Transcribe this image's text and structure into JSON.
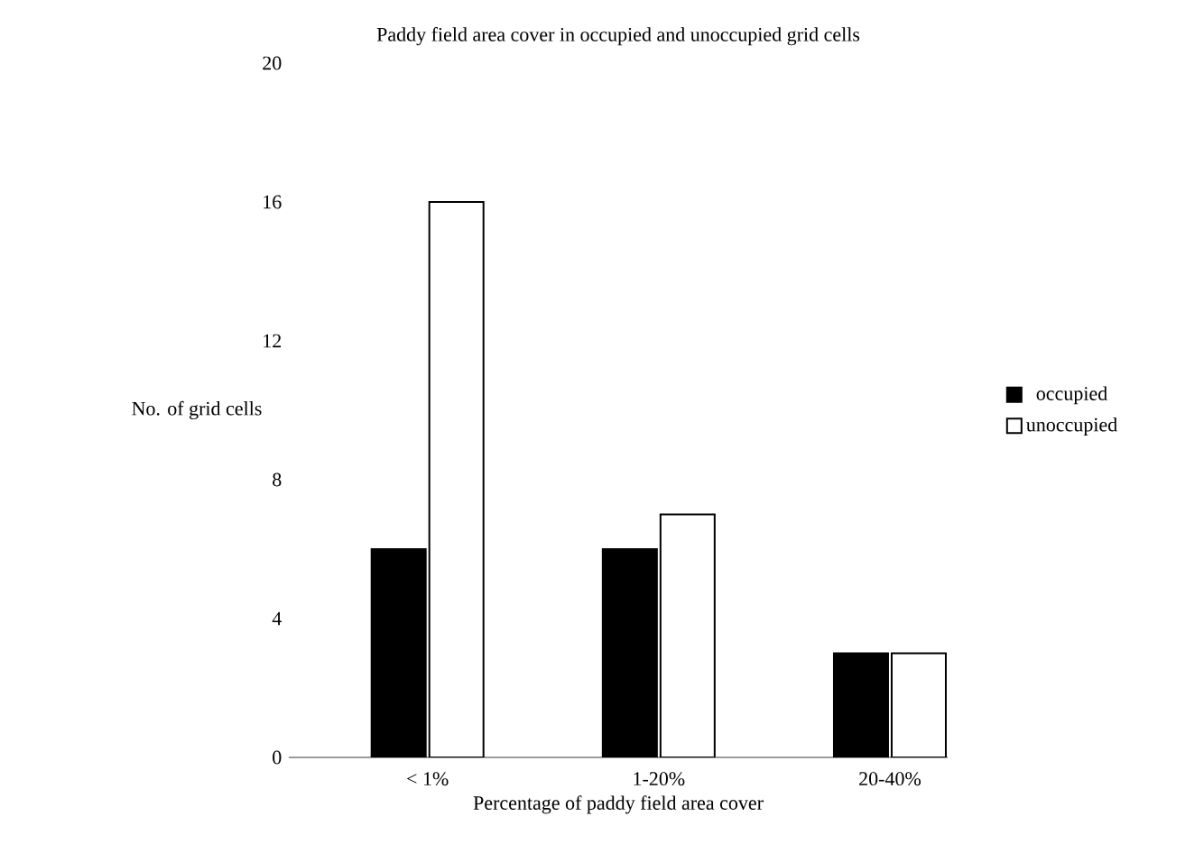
{
  "chart_data": {
    "type": "bar",
    "title": "Paddy field area cover in occupied and unoccupied grid cells",
    "xlabel": "Percentage of paddy field area cover",
    "ylabel": "No. of grid cells",
    "categories": [
      "< 1%",
      "1-20%",
      "20-40%"
    ],
    "series": [
      {
        "name": "occupied",
        "color": "#000000",
        "values": [
          6,
          6,
          3
        ]
      },
      {
        "name": "unoccupied",
        "color": "#ffffff",
        "values": [
          16,
          7,
          3
        ]
      }
    ],
    "ylim": [
      0,
      20
    ],
    "yticks": [
      0,
      4,
      8,
      12,
      16,
      20
    ],
    "grid": false,
    "legend": "right"
  }
}
